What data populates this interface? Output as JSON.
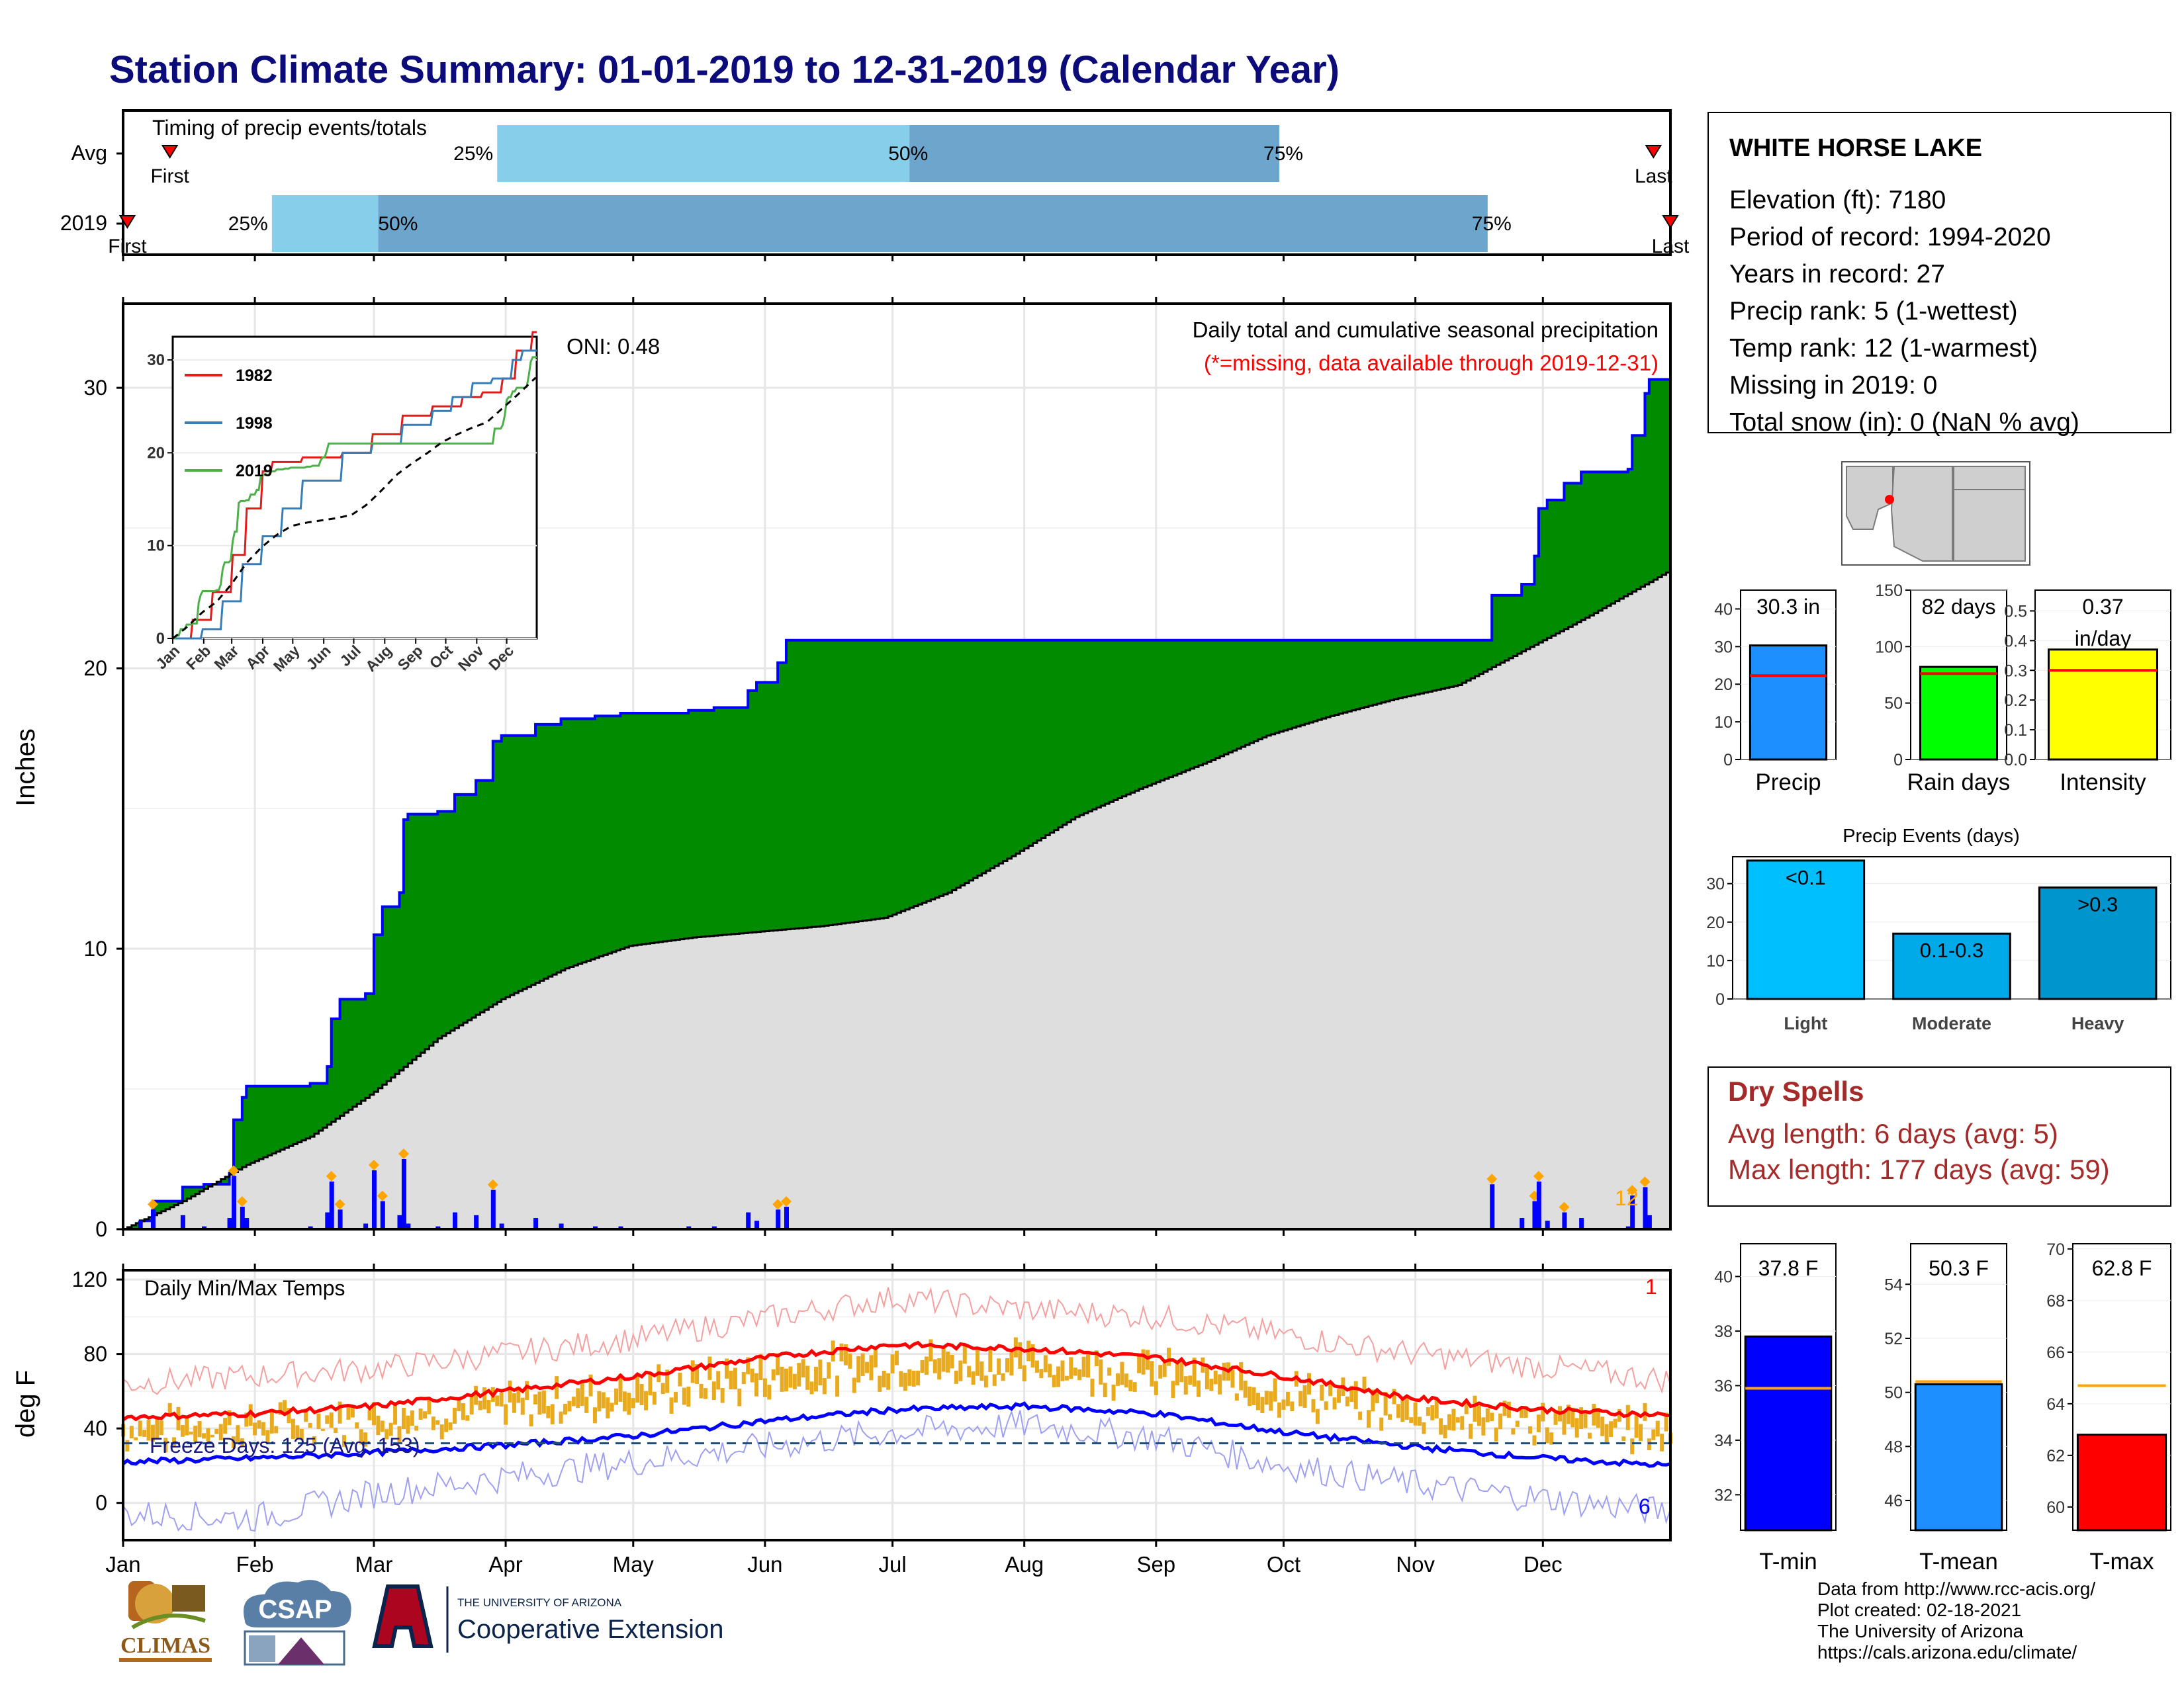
{
  "title": "Station Climate Summary: 01-01-2019 to 12-31-2019 (Calendar Year)",
  "timing_panel": {
    "label": "Timing of precip events/totals",
    "rows": [
      {
        "name": "Avg",
        "first_label": "First",
        "last_label": "Last",
        "first_day": 12,
        "last_day": 361,
        "p25_day": 89,
        "p50_day": 186,
        "p75_day": 273,
        "p25_label": "25%",
        "p50_label": "50%",
        "p75_label": "75%"
      },
      {
        "name": "2019",
        "first_label": "First",
        "last_label": "Last",
        "first_day": 2,
        "last_day": 365,
        "p25_day": 36,
        "p50_day": 61,
        "p75_day": 322,
        "p25_label": "25%",
        "p50_label": "50%",
        "p75_label": "75%"
      }
    ]
  },
  "precip_panel": {
    "ylabel": "Inches",
    "yticks": [
      0,
      10,
      20,
      30
    ],
    "ylim": [
      0,
      33
    ],
    "top_right_text": "Daily total and cumulative seasonal precipitation",
    "missing_text": "(*=missing, data available through 2019-12-31)",
    "oni_text": "ONI: 0.48",
    "end_label": "12"
  },
  "inset": {
    "yticks": [
      0,
      10,
      20,
      30
    ],
    "months": [
      "Jan",
      "Feb",
      "Mar",
      "Apr",
      "May",
      "Jun",
      "Jul",
      "Aug",
      "Sep",
      "Oct",
      "Nov",
      "Dec"
    ],
    "legend": [
      {
        "name": "1982",
        "color": "#e41a1c"
      },
      {
        "name": "1998",
        "color": "#377eb8"
      },
      {
        "name": "2019",
        "color": "#4daf4a"
      }
    ]
  },
  "temp_panel": {
    "ylabel": "deg F",
    "yticks": [
      0,
      40,
      80,
      120
    ],
    "label": "Daily Min/Max Temps",
    "freeze_text": "Freeze Days: 125 (Avg: 153)",
    "top_right_num": "1",
    "bottom_right_num": "6"
  },
  "months": [
    "Jan",
    "Feb",
    "Mar",
    "Apr",
    "May",
    "Jun",
    "Jul",
    "Aug",
    "Sep",
    "Oct",
    "Nov",
    "Dec"
  ],
  "station": {
    "name": "WHITE HORSE LAKE",
    "lines": [
      "Elevation (ft): 7180",
      "Period of record: 1994-2020",
      "Years in record: 27",
      "Precip rank: 5 (1-wettest)",
      "Temp rank: 12 (1-warmest)",
      "Missing in 2019: 0",
      "Total snow (in): 0 (NaN % avg)"
    ]
  },
  "mini_bars": [
    {
      "label": "Precip",
      "value_text": "30.3 in",
      "value": 30.3,
      "avg": 22.3,
      "color": "#1e8fff",
      "yticks": [
        0,
        10,
        20,
        30,
        40
      ],
      "ylim": [
        0,
        45
      ]
    },
    {
      "label": "Rain days",
      "value_text": "82 days",
      "value": 82,
      "avg": 76,
      "color": "#00ff00",
      "yticks": [
        0,
        50,
        100,
        150
      ],
      "ylim": [
        0,
        150
      ]
    },
    {
      "label": "Intensity",
      "value_text": "0.37\nin/day",
      "value": 0.37,
      "avg": 0.3,
      "color": "#ffff00",
      "yticks": [
        0.0,
        0.1,
        0.2,
        0.3,
        0.4,
        0.5
      ],
      "ylim": [
        0,
        0.57
      ]
    }
  ],
  "precip_events": {
    "title": "Precip Events (days)",
    "categories": [
      "Light",
      "Moderate",
      "Heavy"
    ],
    "bar_labels": [
      "<0.1",
      "0.1-0.3",
      ">0.3"
    ],
    "values": [
      36,
      17,
      29
    ],
    "colors": [
      "#00bfff",
      "#00a9e8",
      "#0096cd"
    ],
    "yticks": [
      0,
      10,
      20,
      30
    ],
    "ylim": [
      0,
      37
    ]
  },
  "dry_spells": {
    "title": "Dry Spells",
    "avg_line": "Avg length: 6 days (avg: 5)",
    "max_line": "Max length: 177 days (avg: 59)"
  },
  "temp_bars": [
    {
      "label": "T-min",
      "value_text": "37.8 F",
      "value": 37.8,
      "avg": 35.9,
      "color": "#0000ff",
      "yticks": [
        32,
        34,
        36,
        38,
        40
      ],
      "ylim": [
        30.7,
        41.2
      ]
    },
    {
      "label": "T-mean",
      "value_text": "50.3 F",
      "value": 50.3,
      "avg": 50.4,
      "color": "#1e8fff",
      "yticks": [
        46,
        48,
        50,
        52,
        54
      ],
      "ylim": [
        44.9,
        55.5
      ]
    },
    {
      "label": "T-max",
      "value_text": "62.8 F",
      "value": 62.8,
      "avg": 64.7,
      "color": "#ff0000",
      "yticks": [
        60,
        62,
        64,
        66,
        68,
        70
      ],
      "ylim": [
        59.1,
        70.2
      ]
    }
  ],
  "footer": [
    "Data from http://www.rcc-acis.org/",
    "Plot created: 02-18-2021",
    "The University of Arizona",
    "https://cals.arizona.edu/climate/"
  ],
  "logos": {
    "climas": "CLIMAS",
    "csap": "CSAP",
    "ua_small": "THE UNIVERSITY OF ARIZONA",
    "ua_big": "Cooperative Extension"
  },
  "chart_data": [
    {
      "type": "area",
      "title": "Daily total and cumulative seasonal precipitation",
      "ylabel": "Inches",
      "ylim": [
        0,
        33
      ],
      "x_unit": "day of year 2019",
      "series": [
        {
          "name": "2019",
          "points": [
            [
              1,
              0
            ],
            [
              5,
              0.3
            ],
            [
              8,
              1.0
            ],
            [
              15,
              1.5
            ],
            [
              20,
              1.6
            ],
            [
              26,
              2.0
            ],
            [
              27,
              3.9
            ],
            [
              29,
              4.7
            ],
            [
              30,
              5.1
            ],
            [
              45,
              5.2
            ],
            [
              49,
              5.8
            ],
            [
              50,
              7.5
            ],
            [
              52,
              8.2
            ],
            [
              58,
              8.4
            ],
            [
              60,
              10.5
            ],
            [
              62,
              11.5
            ],
            [
              66,
              12.0
            ],
            [
              67,
              14.6
            ],
            [
              68,
              14.8
            ],
            [
              75,
              14.9
            ],
            [
              79,
              15.5
            ],
            [
              84,
              16.0
            ],
            [
              88,
              17.4
            ],
            [
              90,
              17.6
            ],
            [
              98,
              18.0
            ],
            [
              104,
              18.2
            ],
            [
              112,
              18.3
            ],
            [
              118,
              18.4
            ],
            [
              134,
              18.5
            ],
            [
              140,
              18.6
            ],
            [
              148,
              19.2
            ],
            [
              150,
              19.5
            ],
            [
              153,
              19.5
            ],
            [
              155,
              20.2
            ],
            [
              157,
              21.0
            ],
            [
              320,
              21.0
            ],
            [
              323,
              22.6
            ],
            [
              330,
              23.0
            ],
            [
              333,
              24.0
            ],
            [
              334,
              25.7
            ],
            [
              336,
              26.0
            ],
            [
              340,
              26.6
            ],
            [
              344,
              27.0
            ],
            [
              355,
              27.1
            ],
            [
              356,
              28.3
            ],
            [
              359,
              29.8
            ],
            [
              360,
              30.3
            ],
            [
              365,
              30.3
            ]
          ]
        },
        {
          "name": "Average",
          "points": [
            [
              1,
              0
            ],
            [
              15,
              1.0
            ],
            [
              30,
              2.3
            ],
            [
              45,
              3.3
            ],
            [
              60,
              4.9
            ],
            [
              75,
              6.8
            ],
            [
              90,
              8.2
            ],
            [
              105,
              9.3
            ],
            [
              120,
              10.1
            ],
            [
              135,
              10.4
            ],
            [
              150,
              10.6
            ],
            [
              165,
              10.8
            ],
            [
              180,
              11.1
            ],
            [
              195,
              12.0
            ],
            [
              210,
              13.3
            ],
            [
              225,
              14.7
            ],
            [
              240,
              15.7
            ],
            [
              255,
              16.6
            ],
            [
              270,
              17.6
            ],
            [
              285,
              18.3
            ],
            [
              300,
              18.9
            ],
            [
              315,
              19.4
            ],
            [
              330,
              20.6
            ],
            [
              345,
              21.8
            ],
            [
              365,
              23.5
            ]
          ]
        }
      ]
    },
    {
      "type": "line",
      "title": "Daily Min/Max Temps",
      "ylabel": "deg F",
      "ylim": [
        -20,
        125
      ],
      "x_unit": "day of year 2019",
      "series": [
        {
          "name": "Avg max",
          "points": [
            [
              1,
              46
            ],
            [
              32,
              48
            ],
            [
              60,
              52
            ],
            [
              91,
              60
            ],
            [
              121,
              68
            ],
            [
              152,
              78
            ],
            [
              182,
              85
            ],
            [
              213,
              83
            ],
            [
              244,
              78
            ],
            [
              274,
              68
            ],
            [
              305,
              56
            ],
            [
              335,
              50
            ],
            [
              365,
              47
            ]
          ]
        },
        {
          "name": "Avg min",
          "points": [
            [
              1,
              22
            ],
            [
              32,
              24
            ],
            [
              60,
              27
            ],
            [
              91,
              31
            ],
            [
              121,
              36
            ],
            [
              152,
              44
            ],
            [
              182,
              50
            ],
            [
              213,
              52
            ],
            [
              244,
              48
            ],
            [
              274,
              38
            ],
            [
              305,
              30
            ],
            [
              335,
              24
            ],
            [
              365,
              20
            ]
          ]
        },
        {
          "name": "Record max",
          "points": [
            [
              1,
              64
            ],
            [
              60,
              72
            ],
            [
              121,
              88
            ],
            [
              182,
              110
            ],
            [
              213,
              104
            ],
            [
              244,
              100
            ],
            [
              305,
              80
            ],
            [
              365,
              66
            ]
          ]
        },
        {
          "name": "Record min",
          "points": [
            [
              1,
              -6
            ],
            [
              32,
              -8
            ],
            [
              60,
              5
            ],
            [
              121,
              22
            ],
            [
              182,
              38
            ],
            [
              213,
              42
            ],
            [
              244,
              35
            ],
            [
              274,
              20
            ],
            [
              305,
              10
            ],
            [
              365,
              -5
            ]
          ]
        }
      ],
      "freeze_line": 32
    },
    {
      "type": "bar",
      "categories": [
        "Precip",
        "Rain days",
        "Intensity"
      ],
      "values": [
        30.3,
        82,
        0.37
      ]
    },
    {
      "type": "bar",
      "title": "Precip Events (days)",
      "categories": [
        "Light",
        "Moderate",
        "Heavy"
      ],
      "values": [
        36,
        17,
        29
      ]
    },
    {
      "type": "bar",
      "categories": [
        "T-min",
        "T-mean",
        "T-max"
      ],
      "values": [
        37.8,
        50.3,
        62.8
      ]
    }
  ]
}
